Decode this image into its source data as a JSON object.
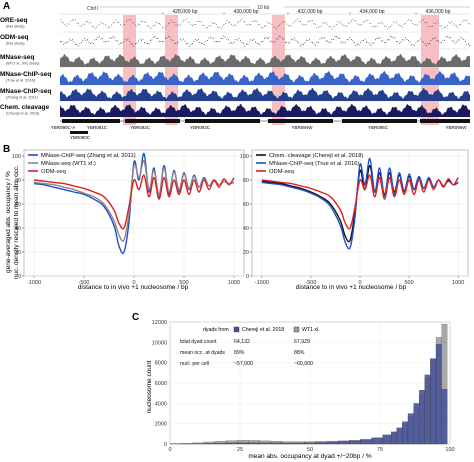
{
  "panels": {
    "a": {
      "letter": "A",
      "chrom": "ChrII",
      "scale_label": "10 kb",
      "coords": [
        "428,000 bp",
        "430,000 bp",
        "432,000 bp",
        "434,000 bp",
        "436,000 bp"
      ],
      "tracks": [
        {
          "name": "ORE-seq",
          "sub": "(this study)",
          "color": "#555555",
          "kind": "dots"
        },
        {
          "name": "ODM-seq",
          "sub": "(this study)",
          "color": "#222222",
          "kind": "dots"
        },
        {
          "name": "MNase-seq",
          "sub": "(WT1 xl., this study)",
          "color": "#6b6b6b",
          "kind": "fill"
        },
        {
          "name": "MNase-ChIP-seq",
          "sub": "(True et al. 2016)",
          "color": "#3a63c8",
          "kind": "fill"
        },
        {
          "name": "MNase-ChIP-seq",
          "sub": "(Zhang et al. 2011)",
          "color": "#243f8f",
          "kind": "fill"
        },
        {
          "name": "Chem. cleavage",
          "sub": "(Chereji et al. 2018)",
          "color": "#1a1a5e",
          "kind": "fill"
        }
      ],
      "genes": [
        "YBR090C-A",
        "YBR091C",
        "YBR092C",
        "YBR093C",
        "YBR094W",
        "YBR095C",
        "YBR096W"
      ],
      "gene_extra": "YBR090C",
      "highlight_color": "#f5a3a8"
    },
    "b": {
      "letter": "B",
      "ylabel_1": "gene-averaged abs. occupancy / %",
      "ylabel_2": "nuc. density rescaled to mean abs. occ.",
      "xlabel": "distance to in vivo +1 nucleosome / bp",
      "left_legend": [
        "MNase-ChIP-seq (Zhang et al. 2011)",
        "MNase-seq (WT1 xl.)",
        "ODM-seq"
      ],
      "right_legend": [
        "Chem. cleavage (Chereji et al. 2018)",
        "MNase-ChIP-seq (True et al. 2016)",
        "ODM-seq"
      ]
    },
    "c": {
      "letter": "C",
      "table_header": "dyads from",
      "col1": "Chereji et al. 2018",
      "col2": "WT1 xl.",
      "rows": [
        {
          "label": "total dyad count",
          "v1": "64,132",
          "v2": "67,929"
        },
        {
          "label": "mean occ. at dyads",
          "v1": "89%",
          "v2": "88%"
        },
        {
          "label": "nucl. per cell",
          "v1": "~57,000",
          "v2": "~60,000"
        }
      ],
      "ylabel": "nucleosome count",
      "xlabel": "mean abs. occupancy at dyad +/−20bp / %"
    }
  },
  "chart_data": [
    {
      "type": "line",
      "title": "",
      "xlabel": "distance to in vivo +1 nucleosome / bp",
      "ylabel": "gene-averaged abs. occupancy / %",
      "xlim": [
        -1100,
        1100
      ],
      "ylim": [
        0,
        105
      ],
      "x_ticks": [
        -1000,
        -500,
        0,
        500,
        1000
      ],
      "y_ticks": [
        0,
        20,
        40,
        60,
        80,
        100
      ],
      "legend": "top-left",
      "x": [
        -1000,
        -900,
        -800,
        -700,
        -600,
        -500,
        -400,
        -300,
        -200,
        -150,
        -100,
        -50,
        0,
        50,
        100,
        150,
        200,
        250,
        300,
        350,
        400,
        450,
        500,
        550,
        600,
        650,
        700,
        750,
        800,
        850,
        900,
        950,
        1000
      ],
      "series": [
        {
          "name": "MNase-ChIP-seq (Zhang et al. 2011)",
          "color": "#1f4fcf",
          "values": [
            77,
            76,
            74,
            72,
            70,
            68,
            64,
            58,
            42,
            25,
            20,
            45,
            95,
            80,
            102,
            70,
            90,
            65,
            92,
            68,
            88,
            70,
            86,
            72,
            84,
            74,
            82,
            75,
            80,
            76,
            79,
            77,
            78
          ]
        },
        {
          "name": "MNase-seq (WT1 xl.)",
          "color": "#888888",
          "values": [
            78,
            77,
            76,
            74,
            72,
            69,
            66,
            60,
            46,
            34,
            30,
            52,
            92,
            82,
            96,
            72,
            88,
            68,
            90,
            70,
            87,
            72,
            85,
            73,
            83,
            74,
            81,
            75,
            79,
            76,
            79,
            77,
            78
          ]
        },
        {
          "name": "ODM-seq",
          "color": "#e0201f",
          "values": [
            80,
            79,
            78,
            77,
            75,
            73,
            70,
            66,
            55,
            44,
            40,
            58,
            80,
            72,
            84,
            66,
            82,
            64,
            82,
            66,
            80,
            68,
            80,
            68,
            80,
            70,
            80,
            72,
            80,
            74,
            81,
            76,
            82
          ]
        }
      ]
    },
    {
      "type": "line",
      "title": "",
      "xlabel": "distance to in vivo +1 nucleosome / bp",
      "ylabel": "",
      "xlim": [
        -1100,
        1100
      ],
      "ylim": [
        0,
        105
      ],
      "x_ticks": [
        -1000,
        -500,
        0,
        500,
        1000
      ],
      "y_ticks": [
        0,
        20,
        40,
        60,
        80,
        100
      ],
      "legend": "top-left",
      "x": [
        -1000,
        -900,
        -800,
        -700,
        -600,
        -500,
        -400,
        -300,
        -200,
        -150,
        -100,
        -50,
        0,
        50,
        100,
        150,
        200,
        250,
        300,
        350,
        400,
        450,
        500,
        550,
        600,
        650,
        700,
        750,
        800,
        850,
        900,
        950,
        1000
      ],
      "series": [
        {
          "name": "Chem. cleavage (Chereji et al. 2018)",
          "color": "#111111",
          "values": [
            79,
            78,
            77,
            75,
            73,
            70,
            66,
            60,
            46,
            33,
            30,
            54,
            88,
            72,
            92,
            70,
            86,
            68,
            86,
            70,
            84,
            71,
            83,
            72,
            82,
            73,
            81,
            74,
            80,
            75,
            80,
            76,
            78
          ]
        },
        {
          "name": "MNase-ChIP-seq (True et al. 2016)",
          "color": "#1f4fcf",
          "values": [
            78,
            77,
            76,
            74,
            72,
            69,
            65,
            58,
            42,
            28,
            24,
            50,
            93,
            76,
            98,
            70,
            90,
            66,
            90,
            68,
            86,
            70,
            85,
            72,
            83,
            73,
            82,
            74,
            80,
            75,
            79,
            76,
            78
          ]
        },
        {
          "name": "ODM-seq",
          "color": "#e0201f",
          "values": [
            80,
            79,
            78,
            77,
            75,
            73,
            70,
            66,
            55,
            44,
            40,
            58,
            80,
            72,
            84,
            66,
            82,
            64,
            82,
            66,
            80,
            68,
            80,
            68,
            80,
            70,
            80,
            72,
            80,
            74,
            81,
            76,
            82
          ]
        }
      ]
    },
    {
      "type": "bar",
      "title": "",
      "xlabel": "mean abs. occupancy at dyad +/−20bp / %",
      "ylabel": "nucleosome count",
      "xlim": [
        0,
        100
      ],
      "ylim": [
        0,
        12000
      ],
      "x_ticks": [
        0,
        25,
        50,
        75,
        100
      ],
      "y_ticks": [
        0,
        2000,
        4000,
        6000,
        8000,
        10000,
        12000
      ],
      "legend": "top",
      "bin_centers": [
        2,
        6,
        10,
        14,
        18,
        22,
        26,
        30,
        34,
        38,
        42,
        46,
        50,
        54,
        58,
        62,
        66,
        70,
        74,
        78,
        80,
        82,
        84,
        86,
        88,
        90,
        92,
        94,
        96,
        98
      ],
      "series": [
        {
          "name": "Chereji et al. 2018",
          "color": "#4a5599",
          "values": [
            10,
            20,
            40,
            60,
            90,
            120,
            140,
            130,
            120,
            110,
            100,
            110,
            130,
            160,
            200,
            260,
            320,
            420,
            600,
            900,
            1200,
            1600,
            2200,
            3000,
            4000,
            5300,
            6800,
            8400,
            9800,
            5400
          ]
        },
        {
          "name": "WT1 xl.",
          "color": "#9a9a9a",
          "values": [
            30,
            60,
            120,
            200,
            280,
            340,
            380,
            360,
            320,
            280,
            240,
            230,
            240,
            260,
            290,
            330,
            380,
            460,
            620,
            880,
            1150,
            1500,
            2000,
            2700,
            3600,
            4800,
            6500,
            8400,
            10500,
            11800
          ]
        }
      ]
    }
  ]
}
